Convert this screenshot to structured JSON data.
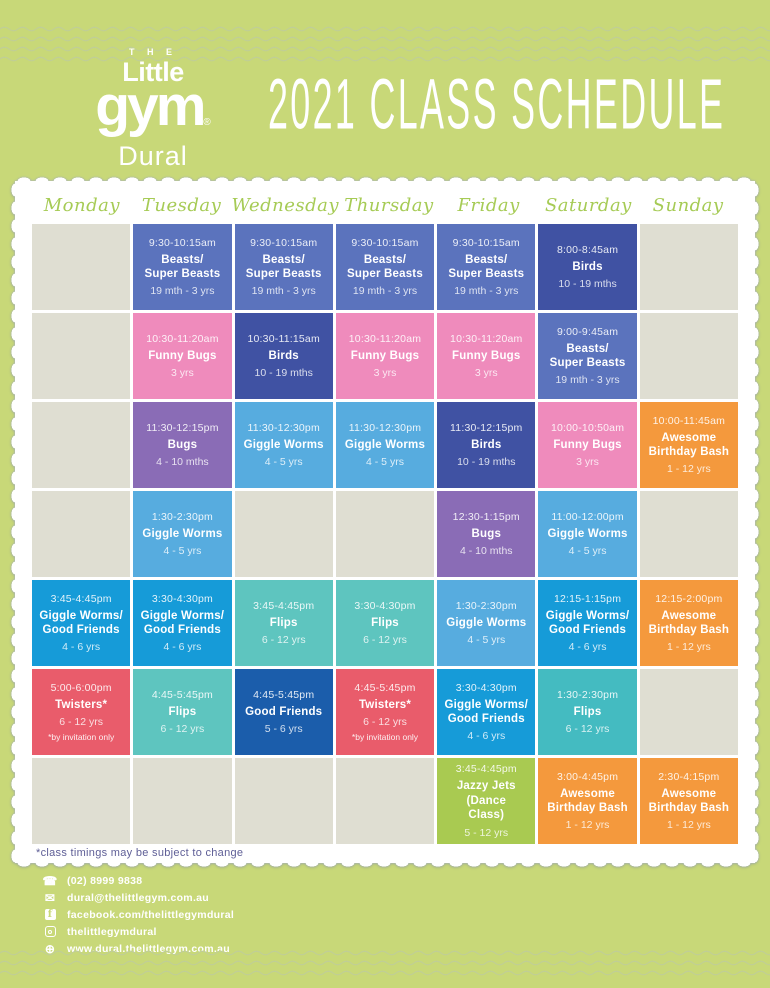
{
  "page": {
    "background": "#c8d878"
  },
  "header": {
    "logo": {
      "the": "T H E",
      "little": "Little",
      "gym": "gym",
      "reg": "®",
      "location": "Dural"
    },
    "title": "2021 CLASS SCHEDULE"
  },
  "schedule": {
    "days": [
      "Monday",
      "Tuesday",
      "Wednesday",
      "Thursday",
      "Friday",
      "Saturday",
      "Sunday"
    ],
    "empty_color": "#dfded2",
    "palette": {
      "beasts": "#5b73bd",
      "birds": "#4052a3",
      "funny_bugs": "#ef8bbc",
      "bugs": "#8a6cb6",
      "giggle_worms": "#57acdf",
      "giggle_good": "#169bd8",
      "flips": "#5ec5bf",
      "flips_dark": "#44bbc1",
      "twisters": "#e95c6b",
      "good_friends": "#1b5dab",
      "birthday": "#f4993d",
      "jazzy": "#a9ca51"
    },
    "rows": [
      {
        "cells": [
          null,
          {
            "time": "9:30-10:15am",
            "name": "Beasts/\nSuper Beasts",
            "age": "19 mth - 3 yrs",
            "color": "#5b73bd"
          },
          {
            "time": "9:30-10:15am",
            "name": "Beasts/\nSuper Beasts",
            "age": "19 mth - 3 yrs",
            "color": "#5b73bd"
          },
          {
            "time": "9:30-10:15am",
            "name": "Beasts/\nSuper Beasts",
            "age": "19 mth - 3 yrs",
            "color": "#5b73bd"
          },
          {
            "time": "9:30-10:15am",
            "name": "Beasts/\nSuper Beasts",
            "age": "19 mth - 3 yrs",
            "color": "#5b73bd"
          },
          {
            "time": "8:00-8:45am",
            "name": "Birds",
            "age": "10 - 19 mths",
            "color": "#4052a3"
          },
          null
        ]
      },
      {
        "cells": [
          null,
          {
            "time": "10:30-11:20am",
            "name": "Funny Bugs",
            "age": "3 yrs",
            "color": "#ef8bbc"
          },
          {
            "time": "10:30-11:15am",
            "name": "Birds",
            "age": "10 - 19 mths",
            "color": "#4052a3"
          },
          {
            "time": "10:30-11:20am",
            "name": "Funny Bugs",
            "age": "3 yrs",
            "color": "#ef8bbc"
          },
          {
            "time": "10:30-11:20am",
            "name": "Funny Bugs",
            "age": "3 yrs",
            "color": "#ef8bbc"
          },
          {
            "time": "9:00-9:45am",
            "name": "Beasts/\nSuper Beasts",
            "age": "19 mth - 3 yrs",
            "color": "#5b73bd"
          },
          null
        ]
      },
      {
        "cells": [
          null,
          {
            "time": "11:30-12:15pm",
            "name": "Bugs",
            "age": "4 - 10 mths",
            "color": "#8a6cb6"
          },
          {
            "time": "11:30-12:30pm",
            "name": "Giggle Worms",
            "age": "4 - 5 yrs",
            "color": "#57acdf"
          },
          {
            "time": "11:30-12:30pm",
            "name": "Giggle Worms",
            "age": "4 - 5 yrs",
            "color": "#57acdf"
          },
          {
            "time": "11:30-12:15pm",
            "name": "Birds",
            "age": "10 - 19 mths",
            "color": "#4052a3"
          },
          {
            "time": "10:00-10:50am",
            "name": "Funny Bugs",
            "age": "3 yrs",
            "color": "#ef8bbc"
          },
          {
            "time": "10:00-11:45am",
            "name": "Awesome\nBirthday Bash",
            "age": "1 - 12 yrs",
            "color": "#f4993d"
          }
        ]
      },
      {
        "cells": [
          null,
          {
            "time": "1:30-2:30pm",
            "name": "Giggle Worms",
            "age": "4 - 5 yrs",
            "color": "#57acdf"
          },
          null,
          null,
          {
            "time": "12:30-1:15pm",
            "name": "Bugs",
            "age": "4 - 10 mths",
            "color": "#8a6cb6"
          },
          {
            "time": "11:00-12:00pm",
            "name": "Giggle Worms",
            "age": "4 - 5 yrs",
            "color": "#57acdf"
          },
          null
        ]
      },
      {
        "cells": [
          {
            "time": "3:45-4:45pm",
            "name": "Giggle Worms/\nGood Friends",
            "age": "4 - 6 yrs",
            "color": "#169bd8"
          },
          {
            "time": "3:30-4:30pm",
            "name": "Giggle Worms/\nGood Friends",
            "age": "4 - 6 yrs",
            "color": "#169bd8"
          },
          {
            "time": "3:45-4:45pm",
            "name": "Flips",
            "age": "6 - 12 yrs",
            "color": "#5ec5bf"
          },
          {
            "time": "3:30-4:30pm",
            "name": "Flips",
            "age": "6 - 12 yrs",
            "color": "#5ec5bf"
          },
          {
            "time": "1:30-2:30pm",
            "name": "Giggle Worms",
            "age": "4 - 5 yrs",
            "color": "#57acdf"
          },
          {
            "time": "12:15-1:15pm",
            "name": "Giggle Worms/\nGood  Friends",
            "age": "4 - 6 yrs",
            "color": "#169bd8"
          },
          {
            "time": "12:15-2:00pm",
            "name": "Awesome\nBirthday Bash",
            "age": "1 - 12 yrs",
            "color": "#f4993d"
          }
        ]
      },
      {
        "cells": [
          {
            "time": "5:00-6:00pm",
            "name": "Twisters*",
            "age": "6 - 12 yrs",
            "note": "*by invitation only",
            "color": "#e95c6b"
          },
          {
            "time": "4:45-5:45pm",
            "name": "Flips",
            "age": "6 - 12 yrs",
            "color": "#5ec5bf"
          },
          {
            "time": "4:45-5:45pm",
            "name": "Good Friends",
            "age": "5 - 6 yrs",
            "color": "#1b5dab"
          },
          {
            "time": "4:45-5:45pm",
            "name": "Twisters*",
            "age": "6 - 12 yrs",
            "note": "*by invitation only",
            "color": "#e95c6b"
          },
          {
            "time": "3:30-4:30pm",
            "name": "Giggle Worms/\nGood  Friends",
            "age": "4 - 6 yrs",
            "color": "#169bd8"
          },
          {
            "time": "1:30-2:30pm",
            "name": "Flips",
            "age": "6 - 12 yrs",
            "color": "#44bbc1"
          },
          null
        ]
      },
      {
        "cells": [
          null,
          null,
          null,
          null,
          {
            "time": "3:45-4:45pm",
            "name": "Jazzy Jets\n(Dance\nClass)",
            "age": "5 - 12 yrs",
            "color": "#a9ca51"
          },
          {
            "time": "3:00-4:45pm",
            "name": "Awesome\nBirthday Bash",
            "age": "1 - 12 yrs",
            "color": "#f4993d"
          },
          {
            "time": "2:30-4:15pm",
            "name": "Awesome\nBirthday Bash",
            "age": "1 - 12 yrs",
            "color": "#f4993d"
          }
        ]
      }
    ]
  },
  "note": "*class timings may be subject to change",
  "footer": {
    "contacts": [
      {
        "icon": "phone-icon",
        "style": "glyph",
        "glyph": "☎",
        "text": "(02) 8999 9838"
      },
      {
        "icon": "email-icon",
        "style": "glyph",
        "glyph": "✉",
        "text": "dural@thelittlegym.com.au"
      },
      {
        "icon": "facebook-icon",
        "style": "facebook",
        "glyph": "f",
        "text": "facebook.com/thelittlegymdural"
      },
      {
        "icon": "instagram-icon",
        "style": "instagram",
        "glyph": "",
        "text": "thelittlegymdural"
      },
      {
        "icon": "globe-icon",
        "style": "glyph",
        "glyph": "⊕",
        "text": "www.dural.thelittlegym.com.au"
      }
    ]
  }
}
